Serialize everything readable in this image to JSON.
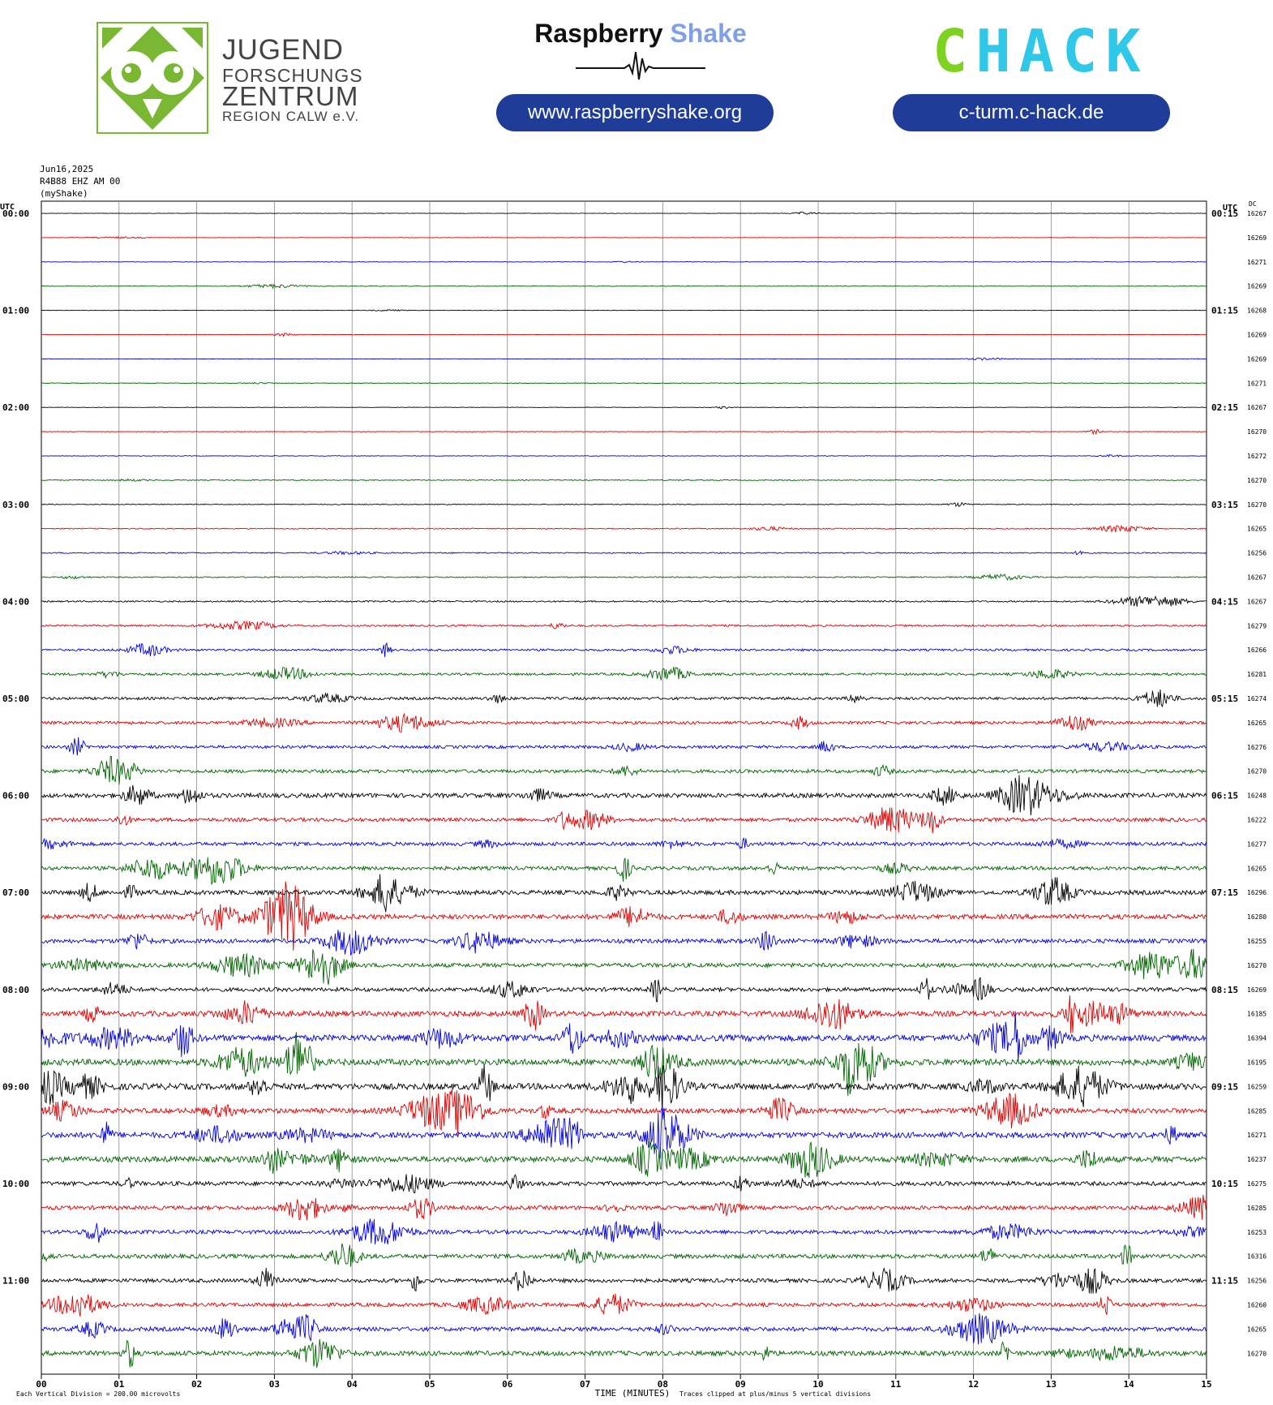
{
  "logos": {
    "jfz": {
      "lines": [
        "JUGEND",
        "FORSCHUNGS",
        "ZENTRUM",
        "REGION CALW e.V."
      ],
      "color": "#7ab833"
    },
    "raspberryshake": {
      "name_part1": "Raspberry",
      "name_part2": "Shake",
      "url": "www.raspberryshake.org"
    },
    "chack": {
      "text_part1": "C",
      "text_part2": "HACK",
      "url": "c-turm.c-hack.de"
    }
  },
  "header": {
    "date": "Jun16,2025",
    "station": "R4B88 EHZ AM 00",
    "owner": "(myShake)"
  },
  "chart_data": {
    "type": "helicorder",
    "left_axis_label": "UTC",
    "right_axis_label": "UTC",
    "dc_label": "DC",
    "left_time_labels": [
      "00:00",
      "01:00",
      "02:00",
      "03:00",
      "04:00",
      "05:00",
      "06:00",
      "07:00",
      "08:00",
      "09:00",
      "10:00",
      "11:00"
    ],
    "right_time_labels": [
      "00:15",
      "01:15",
      "02:15",
      "03:15",
      "04:15",
      "05:15",
      "06:15",
      "07:15",
      "08:15",
      "09:15",
      "10:15",
      "11:15"
    ],
    "dc_offsets": [
      16267,
      16269,
      16271,
      16269,
      16268,
      16269,
      16269,
      16271,
      16267,
      16270,
      16272,
      16270,
      16270,
      16265,
      16256,
      16267,
      16267,
      16279,
      16266,
      16281,
      16274,
      16265,
      16276,
      16270,
      16248,
      16222,
      16277,
      16265,
      16296,
      16280,
      16255,
      16270,
      16269,
      16185,
      16394,
      16195,
      16259,
      16285,
      16271,
      16237,
      16275,
      16285,
      16253,
      16316,
      16256,
      16260,
      16265,
      16270
    ],
    "trace_colors": [
      "#000000",
      "#e00000",
      "#0000e0",
      "#006400"
    ],
    "trace_amplitude": [
      0.3,
      0.3,
      0.3,
      0.4,
      0.3,
      0.3,
      0.3,
      0.4,
      0.3,
      0.4,
      0.4,
      0.6,
      0.6,
      0.7,
      0.8,
      0.8,
      1.0,
      1.2,
      1.4,
      1.6,
      1.8,
      2.0,
      2.0,
      2.3,
      3.0,
      2.5,
      2.4,
      2.5,
      3.0,
      3.2,
      2.8,
      2.8,
      2.6,
      3.6,
      4.2,
      4.2,
      4.2,
      3.4,
      3.8,
      3.8,
      2.8,
      2.6,
      2.6,
      2.8,
      2.6,
      2.5,
      2.8,
      3.2
    ],
    "x_ticks": [
      "00",
      "01",
      "02",
      "03",
      "04",
      "05",
      "06",
      "07",
      "08",
      "09",
      "10",
      "11",
      "12",
      "13",
      "14",
      "15"
    ],
    "xlabel": "TIME (MINUTES)",
    "x_range": [
      0,
      15
    ],
    "footer_left": "Each Vertical Division =  200.00 microvolts",
    "footer_right": "Traces clipped at plus/minus 5 vertical divisions",
    "grid": true
  }
}
